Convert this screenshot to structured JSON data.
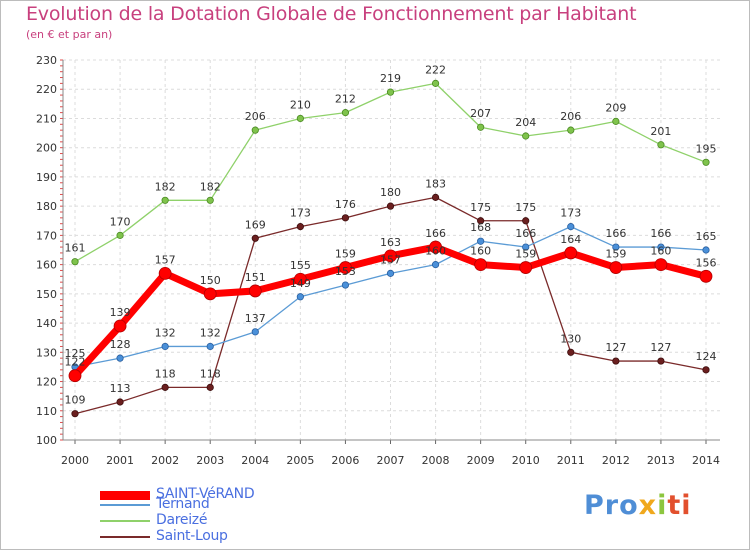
{
  "title": "Evolution de la Dotation Globale de Fonctionnement par Habitant",
  "subtitle": "(en € et par an)",
  "brand": {
    "p1": "Pro",
    "p2": "x",
    "p3": "i",
    "p4": "ti"
  },
  "chart_data": {
    "type": "line",
    "title": "Evolution de la Dotation Globale de Fonctionnement par Habitant",
    "subtitle": "(en € et par an)",
    "xlabel": "",
    "ylabel": "",
    "ylim": [
      100,
      230
    ],
    "yticks": [
      100,
      110,
      120,
      130,
      140,
      150,
      160,
      170,
      180,
      190,
      200,
      210,
      220,
      230
    ],
    "grid": true,
    "legend_position": "bottom-left",
    "categories": [
      "2000",
      "2001",
      "2002",
      "2003",
      "2004",
      "2005",
      "2006",
      "2007",
      "2008",
      "2009",
      "2010",
      "2011",
      "2012",
      "2013",
      "2014"
    ],
    "series": [
      {
        "name": "SAINT-VéRAND",
        "color": "#ff0000",
        "values": [
          122,
          139,
          157,
          150,
          151,
          155,
          159,
          163,
          166,
          160,
          159,
          164,
          159,
          160,
          156
        ]
      },
      {
        "name": "Ternand",
        "color": "#5b9bd5",
        "values": [
          125,
          128,
          132,
          132,
          137,
          149,
          153,
          157,
          160,
          168,
          166,
          173,
          166,
          166,
          165
        ]
      },
      {
        "name": "Dareizé",
        "color": "#8fd16a",
        "values": [
          161,
          170,
          182,
          182,
          206,
          210,
          212,
          219,
          222,
          207,
          204,
          206,
          209,
          201,
          195
        ]
      },
      {
        "name": "Saint-Loup",
        "color": "#7a2a2a",
        "values": [
          109,
          113,
          118,
          118,
          169,
          173,
          176,
          180,
          183,
          175,
          175,
          130,
          127,
          127,
          124
        ]
      }
    ]
  }
}
